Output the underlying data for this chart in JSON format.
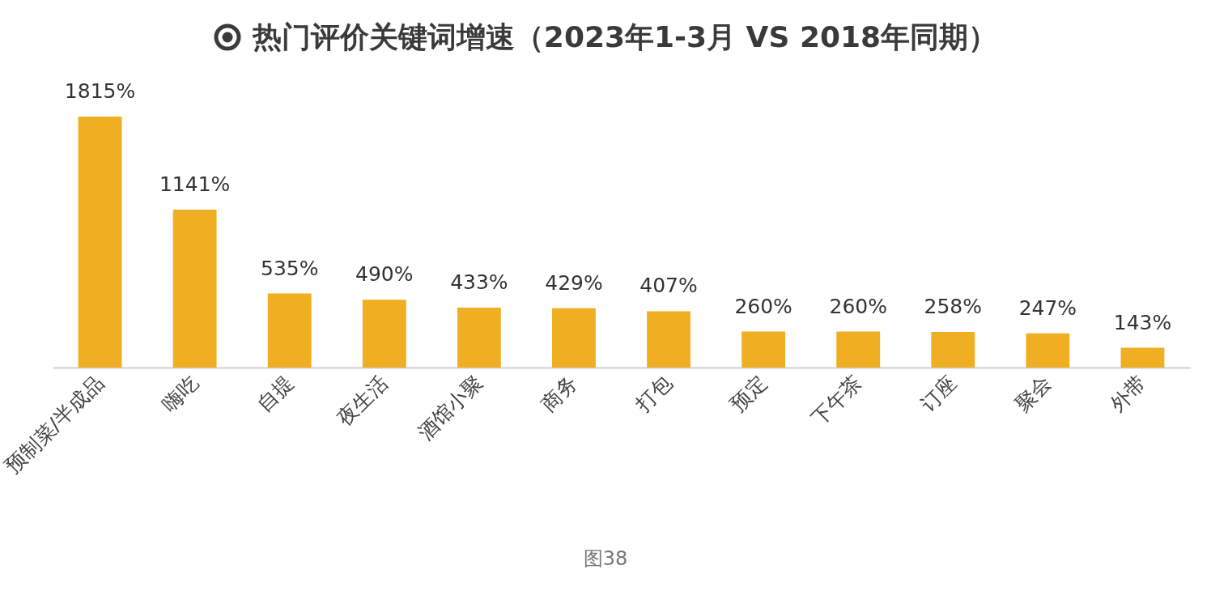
{
  "chart_data": {
    "type": "bar",
    "title": "热门评价关键词增速（2023年1-3月 VS  2018年同期）",
    "categories": [
      "预制菜/半成品",
      "嗨吃",
      "自提",
      "夜生活",
      "酒馆小聚",
      "商务",
      "打包",
      "预定",
      "下午茶",
      "订座",
      "聚会",
      "外带"
    ],
    "values": [
      1815,
      1141,
      535,
      490,
      433,
      429,
      407,
      260,
      260,
      258,
      247,
      143
    ],
    "value_labels": [
      "1815%",
      "1141%",
      "535%",
      "490%",
      "433%",
      "429%",
      "407%",
      "260%",
      "260%",
      "258%",
      "247%",
      "143%"
    ],
    "color": "#f0ae22",
    "annotations": [
      "图38"
    ]
  }
}
